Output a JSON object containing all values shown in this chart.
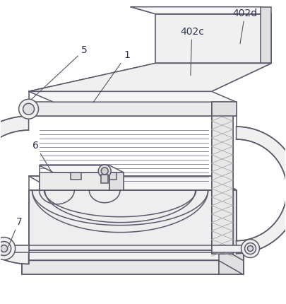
{
  "bg_color": "#ffffff",
  "line_color": "#5a5a6a",
  "line_width": 1.1,
  "label_fontsize": 10,
  "label_color": "#333355",
  "components": {
    "base": {
      "fc": "#f0f0f0",
      "ec": "#5a5a6a"
    },
    "tank": {
      "fc": "#eeeeee",
      "ec": "#5a5a6a"
    },
    "rad": {
      "fc": "#f5f5f5",
      "ec": "#5a5a6a"
    },
    "rad_side": {
      "fc": "#e8e8e8",
      "ec": "#5a5a6a"
    },
    "hdr": {
      "fc": "#f0f0f0",
      "ec": "#5a5a6a"
    },
    "hdr_box": {
      "fc": "#ebebeb",
      "ec": "#5a5a6a"
    },
    "pipe": {
      "fc": "#f0f0f0",
      "ec": "#5a5a6a"
    },
    "dark": {
      "fc": "#e0e0e0",
      "ec": "#5a5a6a"
    }
  }
}
